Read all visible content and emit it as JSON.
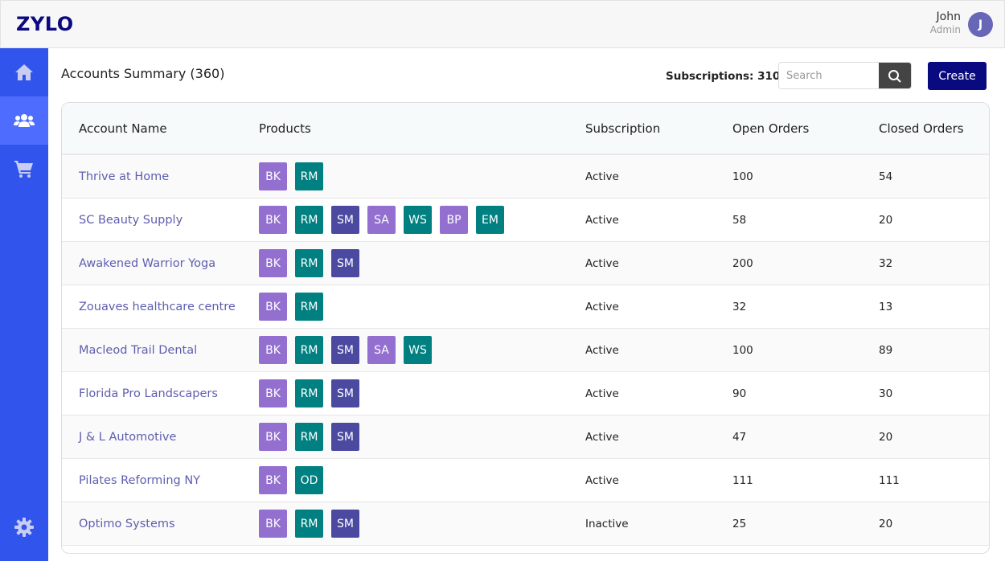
{
  "app": {
    "logo": "ZYLO"
  },
  "user": {
    "name": "John",
    "role": "Admin",
    "initial": "J"
  },
  "sidebar": {
    "items": [
      {
        "name": "home",
        "icon": "home-icon"
      },
      {
        "name": "accounts",
        "icon": "users-icon",
        "active": true
      },
      {
        "name": "orders",
        "icon": "cart-icon"
      },
      {
        "name": "settings",
        "icon": "gear-icon"
      }
    ]
  },
  "page": {
    "title": "Accounts Summary (360)",
    "subscriptions": "Subscriptions: 310",
    "search_placeholder": "Search",
    "create_label": "Create"
  },
  "colors": {
    "BK": "#9370d0",
    "RM": "#008080",
    "SM": "#4b4aa0",
    "SA": "#9370d0",
    "WS": "#008080",
    "BP": "#9370d0",
    "EM": "#008080",
    "OD": "#008080"
  },
  "table": {
    "columns": [
      "Account Name",
      "Products",
      "Subscription",
      "Open Orders",
      "Closed Orders"
    ],
    "rows": [
      {
        "name": "Thrive at Home",
        "products": [
          "BK",
          "RM"
        ],
        "subscription": "Active",
        "open": "100",
        "closed": "54"
      },
      {
        "name": "SC Beauty Supply",
        "products": [
          "BK",
          "RM",
          "SM",
          "SA",
          "WS",
          "BP",
          "EM"
        ],
        "subscription": "Active",
        "open": "58",
        "closed": "20"
      },
      {
        "name": "Awakened Warrior Yoga",
        "products": [
          "BK",
          "RM",
          "SM"
        ],
        "subscription": "Active",
        "open": "200",
        "closed": "32"
      },
      {
        "name": "Zouaves healthcare centre",
        "products": [
          "BK",
          "RM"
        ],
        "subscription": "Active",
        "open": "32",
        "closed": "13"
      },
      {
        "name": "Macleod Trail Dental",
        "products": [
          "BK",
          "RM",
          "SM",
          "SA",
          "WS"
        ],
        "subscription": "Active",
        "open": "100",
        "closed": "89"
      },
      {
        "name": "Florida Pro Landscapers",
        "products": [
          "BK",
          "RM",
          "SM"
        ],
        "subscription": "Active",
        "open": "90",
        "closed": "30"
      },
      {
        "name": "J & L Automotive",
        "products": [
          "BK",
          "RM",
          "SM"
        ],
        "subscription": "Active",
        "open": "47",
        "closed": "20"
      },
      {
        "name": "Pilates Reforming NY",
        "products": [
          "BK",
          "OD"
        ],
        "subscription": "Active",
        "open": "111",
        "closed": "111"
      },
      {
        "name": "Optimo Systems",
        "products": [
          "BK",
          "RM",
          "SM"
        ],
        "subscription": "Inactive",
        "open": "25",
        "closed": "20"
      }
    ]
  }
}
